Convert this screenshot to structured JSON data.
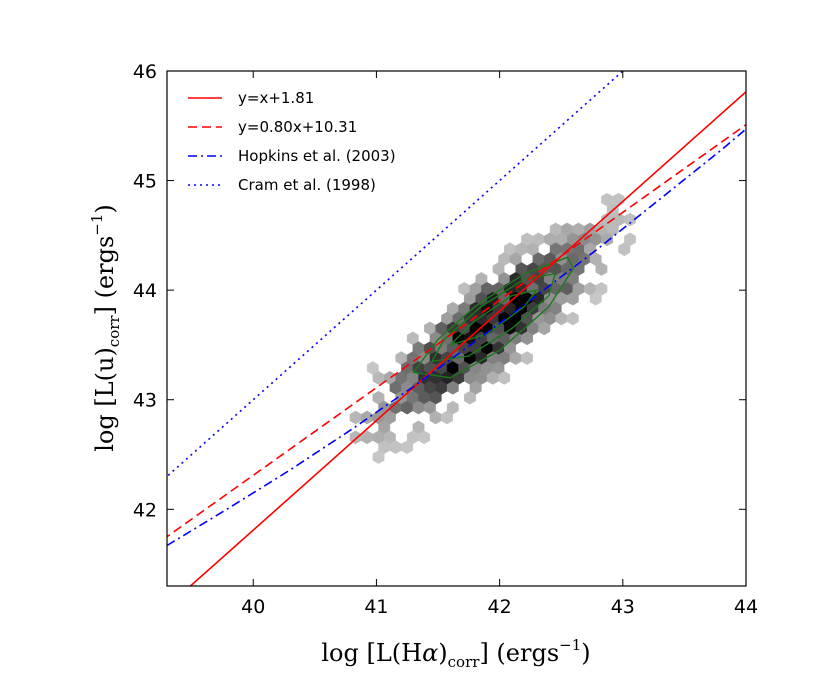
{
  "chart_data": {
    "type": "scatter",
    "subtype": "hexbin-density-with-contours",
    "xlabel": "log [L(Hα)corr] (ergs⁻¹)",
    "ylabel": "log [L(u)corr] (ergs⁻¹)",
    "xlabel_parts": {
      "pre": "log [L(H",
      "alpha": "α",
      "paren": ")",
      "sub": "corr",
      "post": "] (ergs",
      "sup": "−1",
      "end": ")"
    },
    "ylabel_parts": {
      "pre": "log [L(u)",
      "sub": "corr",
      "post": "] (ergs",
      "sup": "−1",
      "end": ")"
    },
    "xlim": [
      39.3,
      44.0
    ],
    "ylim": [
      41.3,
      46.0
    ],
    "x_ticks": [
      40,
      41,
      42,
      43,
      44
    ],
    "y_ticks": [
      42,
      43,
      44,
      45,
      46
    ],
    "x_tick_labels": [
      "40",
      "41",
      "42",
      "43",
      "44"
    ],
    "y_tick_labels": [
      "42",
      "43",
      "44",
      "45",
      "46"
    ],
    "grid": false,
    "legend_position": "top-left",
    "series": [
      {
        "name": "y=x+1.81",
        "kind": "line",
        "slope": 1.0,
        "intercept": 1.81,
        "color": "#ff0000",
        "style": "solid"
      },
      {
        "name": "y=0.80x+10.31",
        "kind": "line",
        "slope": 0.8,
        "intercept": 10.31,
        "color": "#ff0000",
        "style": "dashed"
      },
      {
        "name": "Hopkins et al. (2003)",
        "kind": "curve",
        "color": "#0000ff",
        "style": "dashdot",
        "x": [
          39.3,
          39.8,
          40.3,
          40.8,
          41.3,
          41.8,
          42.3,
          42.8,
          43.3,
          43.8,
          44.0
        ],
        "y": [
          41.67,
          42.01,
          42.36,
          42.73,
          43.12,
          43.53,
          43.95,
          44.38,
          44.83,
          45.28,
          45.47
        ]
      },
      {
        "name": "Cram et al. (1998)",
        "kind": "line",
        "slope": 1.0,
        "intercept": 3.0,
        "color": "#0000ff",
        "style": "dotted"
      }
    ],
    "density": {
      "description_values": "hexbin counts concentrated along y ≈ x + 1.8, x from 40.6 to 43.2",
      "x_range": [
        40.6,
        43.2
      ],
      "y_range": [
        42.5,
        44.7
      ],
      "peak": [
        41.9,
        43.65
      ],
      "contour_color": "#1a7a1a"
    },
    "contours": [
      {
        "level": 1,
        "x": [
          41.3,
          41.6,
          42.0,
          42.4,
          42.6,
          42.55,
          42.2,
          41.8,
          41.5,
          41.3
        ],
        "y": [
          43.25,
          43.2,
          43.45,
          43.85,
          44.2,
          44.3,
          44.15,
          43.85,
          43.55,
          43.25
        ]
      },
      {
        "level": 2,
        "x": [
          41.45,
          41.75,
          42.1,
          42.4,
          42.45,
          42.2,
          41.85,
          41.55,
          41.45
        ],
        "y": [
          43.35,
          43.4,
          43.65,
          43.95,
          44.15,
          44.1,
          43.85,
          43.55,
          43.35
        ]
      },
      {
        "level": 3,
        "x": [
          41.6,
          41.9,
          42.2,
          42.3,
          42.1,
          41.8,
          41.6
        ],
        "y": [
          43.5,
          43.6,
          43.85,
          44.0,
          43.95,
          43.72,
          43.5
        ]
      }
    ]
  }
}
